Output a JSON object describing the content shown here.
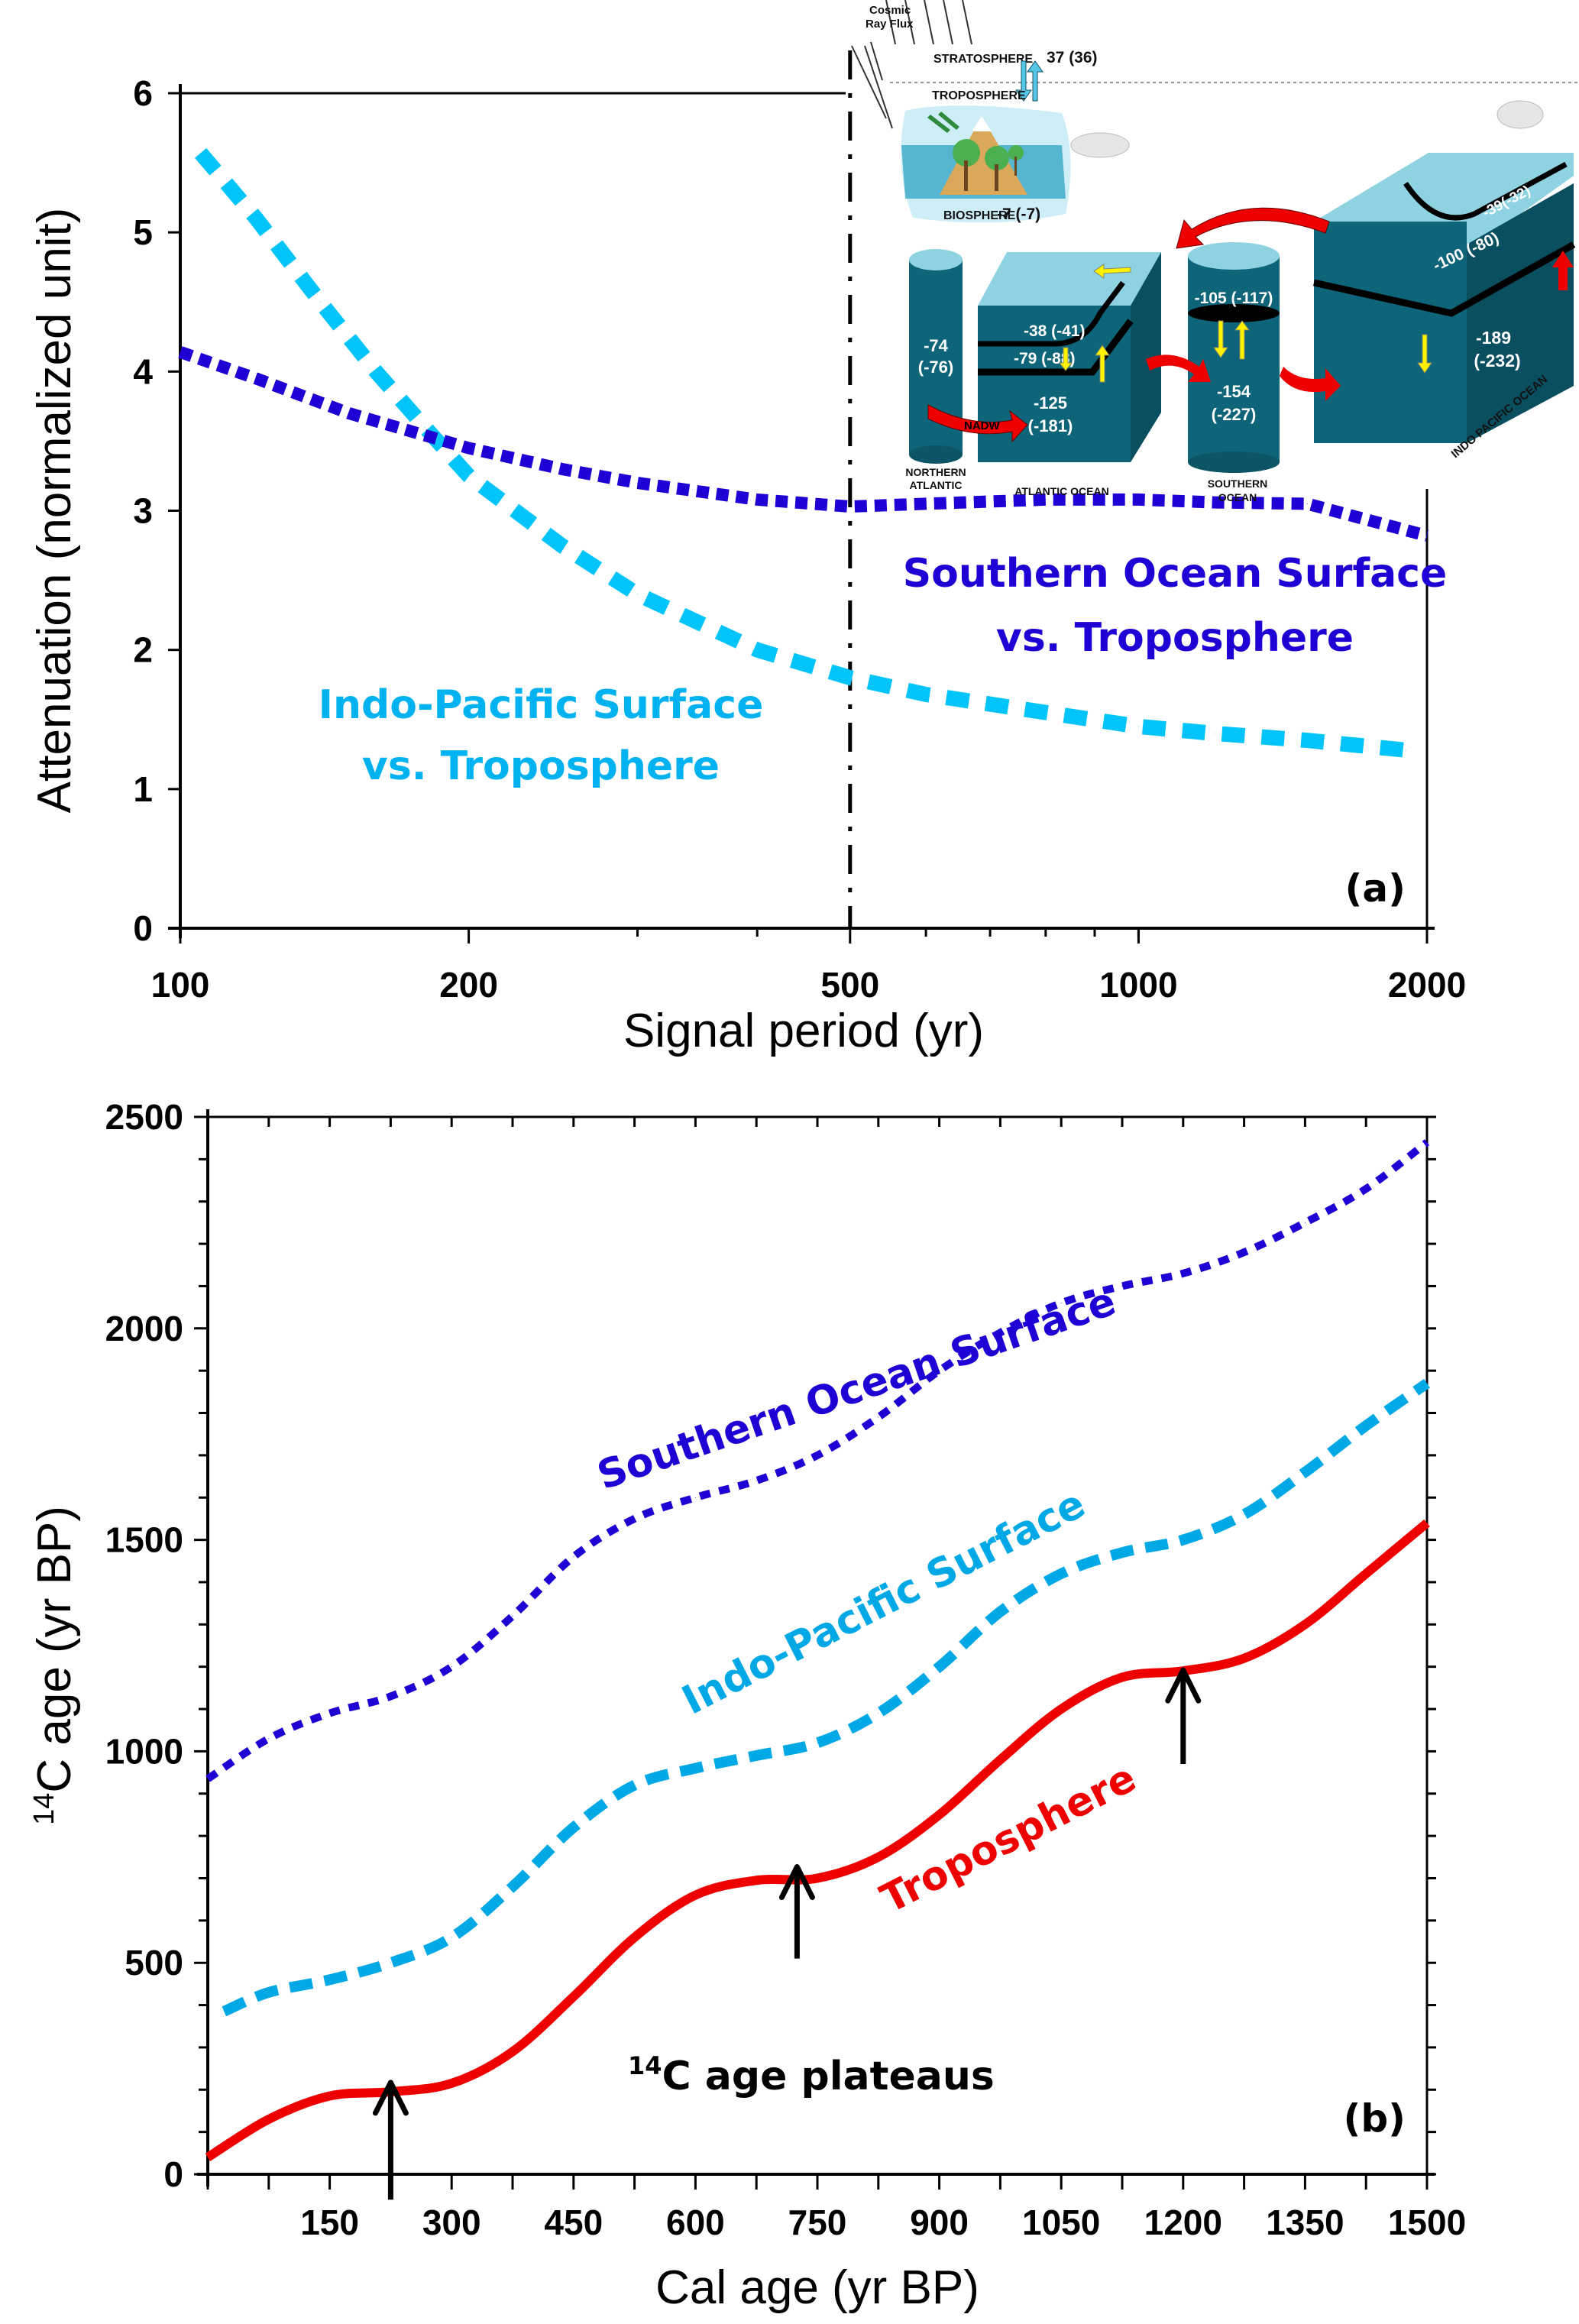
{
  "colors": {
    "indo_pacific": "#00c4fa",
    "indo_pacific_b": "#00a9e6",
    "southern_ocean": "#1f00d4",
    "troposphere": "#ee0000",
    "ocean_dark": "#0e6478",
    "ocean_light": "#8fd3e3",
    "arrow_yellow": "#fff200",
    "arrow_red": "#ee0000"
  },
  "chart_data": [
    {
      "id": "a",
      "type": "scatter",
      "panel_label": "(a)",
      "xlabel": "Signal period (yr)",
      "ylabel": "Attenuation (normalized unit)",
      "xscale": "log",
      "xlim": [
        100,
        2000
      ],
      "ylim": [
        0,
        6
      ],
      "xticks": [
        100,
        200,
        500,
        1000,
        2000
      ],
      "xtick_labels": [
        "100",
        "200",
        "500",
        "1000",
        "2000"
      ],
      "yticks": [
        0,
        1,
        2,
        3,
        4,
        5,
        6
      ],
      "ytick_labels": [
        "0",
        "1",
        "2",
        "3",
        "4",
        "5",
        "6"
      ],
      "vertical_line": {
        "x": 500,
        "style": "dash-dot"
      },
      "series": [
        {
          "name": "Indo-Pacific Surface vs. Troposphere",
          "label_lines": [
            "Indo-Pacific Surface",
            "vs. Troposphere"
          ],
          "style": "dashed",
          "x": [
            105,
            120,
            140,
            160,
            180,
            200,
            250,
            300,
            400,
            500,
            600,
            800,
            1000,
            1200,
            1500,
            1900
          ],
          "y": [
            5.57,
            5.1,
            4.5,
            4.0,
            3.6,
            3.25,
            2.75,
            2.4,
            2.0,
            1.8,
            1.68,
            1.55,
            1.45,
            1.4,
            1.35,
            1.28
          ]
        },
        {
          "name": "Southern Ocean Surface vs. Troposphere",
          "label_lines": [
            "Southern Ocean Surface",
            "vs. Troposphere"
          ],
          "style": "dotted",
          "x": [
            100,
            120,
            150,
            200,
            250,
            300,
            400,
            500,
            600,
            800,
            1000,
            1200,
            1500,
            1700,
            2000
          ],
          "y": [
            4.14,
            3.95,
            3.7,
            3.45,
            3.3,
            3.2,
            3.08,
            3.03,
            3.05,
            3.08,
            3.08,
            3.06,
            3.05,
            2.95,
            2.82
          ]
        }
      ]
    },
    {
      "id": "b",
      "type": "line",
      "panel_label": "(b)",
      "xlabel": "Cal age (yr BP)",
      "ylabel_sup": "14",
      "ylabel": "C age (yr BP)",
      "xlim": [
        0,
        1500
      ],
      "ylim": [
        0,
        2500
      ],
      "xticks": [
        150,
        300,
        450,
        600,
        750,
        900,
        1050,
        1200,
        1350,
        1500
      ],
      "xtick_labels": [
        "150",
        "300",
        "450",
        "600",
        "750",
        "900",
        "1050",
        "1200",
        "1350",
        "1500"
      ],
      "yticks": [
        0,
        500,
        1000,
        1500,
        2000,
        2500
      ],
      "ytick_labels": [
        "0",
        "500",
        "1000",
        "1500",
        "2000",
        "2500"
      ],
      "annotation": {
        "sup": "14",
        "text": "C age plateaus",
        "arrows_at_x": [
          225,
          725,
          1200
        ]
      },
      "series": [
        {
          "name": "Southern Ocean Surface",
          "style": "dotted",
          "x": [
            0,
            75,
            150,
            225,
            300,
            375,
            450,
            525,
            600,
            675,
            750,
            825,
            900,
            975,
            1050,
            1125,
            1200,
            1275,
            1350,
            1425,
            1500
          ],
          "y": [
            935,
            1030,
            1090,
            1130,
            1200,
            1320,
            1460,
            1550,
            1600,
            1640,
            1700,
            1790,
            1900,
            1990,
            2060,
            2100,
            2130,
            2180,
            2250,
            2330,
            2440
          ]
        },
        {
          "name": "Indo-Pacific Surface",
          "style": "dashed",
          "x": [
            20,
            75,
            150,
            225,
            300,
            375,
            450,
            525,
            600,
            675,
            750,
            825,
            900,
            975,
            1050,
            1125,
            1200,
            1275,
            1350,
            1425,
            1500
          ],
          "y": [
            385,
            430,
            460,
            500,
            560,
            680,
            820,
            920,
            960,
            990,
            1020,
            1090,
            1200,
            1330,
            1420,
            1470,
            1500,
            1560,
            1660,
            1770,
            1870
          ]
        },
        {
          "name": "Troposphere",
          "style": "solid",
          "x": [
            0,
            75,
            150,
            225,
            300,
            375,
            450,
            525,
            600,
            675,
            750,
            825,
            900,
            975,
            1050,
            1125,
            1200,
            1275,
            1350,
            1425,
            1500
          ],
          "y": [
            40,
            130,
            185,
            195,
            215,
            290,
            420,
            560,
            660,
            695,
            700,
            750,
            850,
            980,
            1100,
            1175,
            1190,
            1220,
            1300,
            1420,
            1540
          ]
        }
      ]
    }
  ],
  "inset": {
    "cosmic_ray_flux": [
      "Cosmic",
      "Ray Flux"
    ],
    "stratosphere": "STRATOSPHERE",
    "stratosphere_value": "37 (36)",
    "troposphere": "TROPOSPHERE",
    "biosphere": "BIOSPHERE",
    "biosphere_value": "-7 (-7)",
    "northern_atlantic": [
      "NORTHERN",
      "ATLANTIC"
    ],
    "northern_atlantic_value": [
      "-74",
      "(-76)"
    ],
    "atlantic_ocean": "ATLANTIC OCEAN",
    "atlantic_surface": "-38 (-41)",
    "atlantic_mid": "-79  (-88)",
    "atlantic_deep": [
      "-125",
      "(-181)"
    ],
    "nadw": "NADW",
    "southern_ocean": [
      "SOUTHERN",
      "OCEAN"
    ],
    "southern_surface": "-105 (-117)",
    "southern_deep": [
      "-154",
      "(-227)"
    ],
    "indo_pacific_ocean": "INDO PACIFIC OCEAN",
    "indo_surface": "-39(-32)",
    "indo_mid": "-100 (-80)",
    "indo_deep": [
      "-189",
      "(-232)"
    ]
  }
}
